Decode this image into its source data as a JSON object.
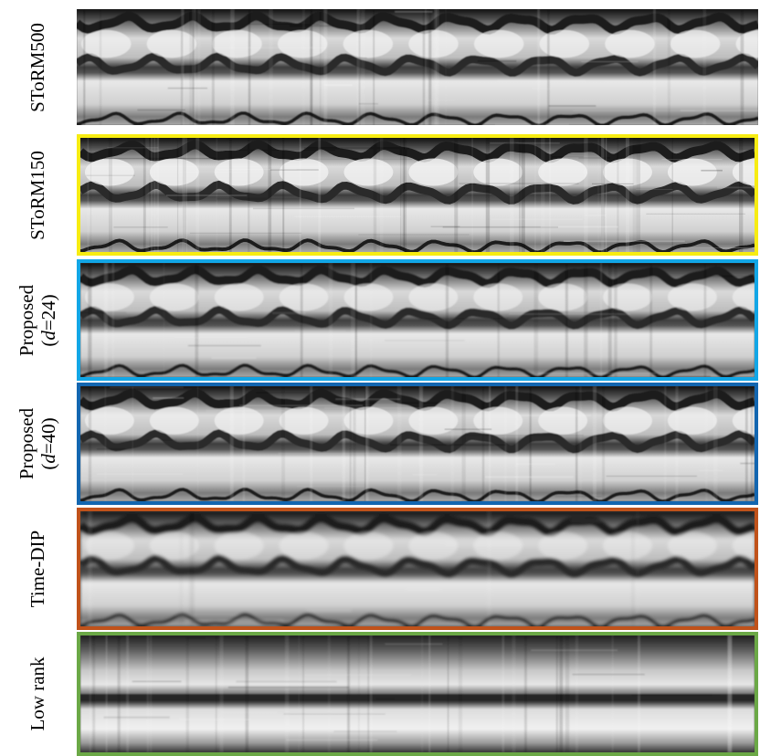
{
  "panels": [
    {
      "id": "storm500",
      "label": [
        "SToRM500"
      ],
      "frame": null,
      "style": {
        "noise": 0.16,
        "blur": 0.6,
        "stripes": 0.55,
        "bands": 0.35
      }
    },
    {
      "id": "storm150",
      "label": [
        "SToRM150"
      ],
      "frame": "#f7ec12",
      "style": {
        "noise": 0.32,
        "blur": 0.3,
        "stripes": 0.75,
        "bands": 0.45
      }
    },
    {
      "id": "proposed24",
      "label": [
        "Proposed",
        "(d=24)"
      ],
      "frame": "#12a6e6",
      "style": {
        "noise": 0.1,
        "blur": 0.9,
        "stripes": 0.35,
        "bands": 0.25
      }
    },
    {
      "id": "proposed40",
      "label": [
        "Proposed",
        "(d=40)"
      ],
      "frame": "#1366b0",
      "style": {
        "noise": 0.2,
        "blur": 0.6,
        "stripes": 0.55,
        "bands": 0.35
      }
    },
    {
      "id": "timedip",
      "label": [
        "Time-DIP"
      ],
      "frame": "#c0521a",
      "style": {
        "noise": 0.05,
        "blur": 1.6,
        "stripes": 0.1,
        "bands": 0.1
      }
    },
    {
      "id": "lowrank",
      "label": [
        "Low rank"
      ],
      "frame": "#6ba846",
      "style": {
        "noise": 0.14,
        "blur": 0.8,
        "stripes": 0.6,
        "bands": 0.0,
        "flat": true
      }
    }
  ]
}
